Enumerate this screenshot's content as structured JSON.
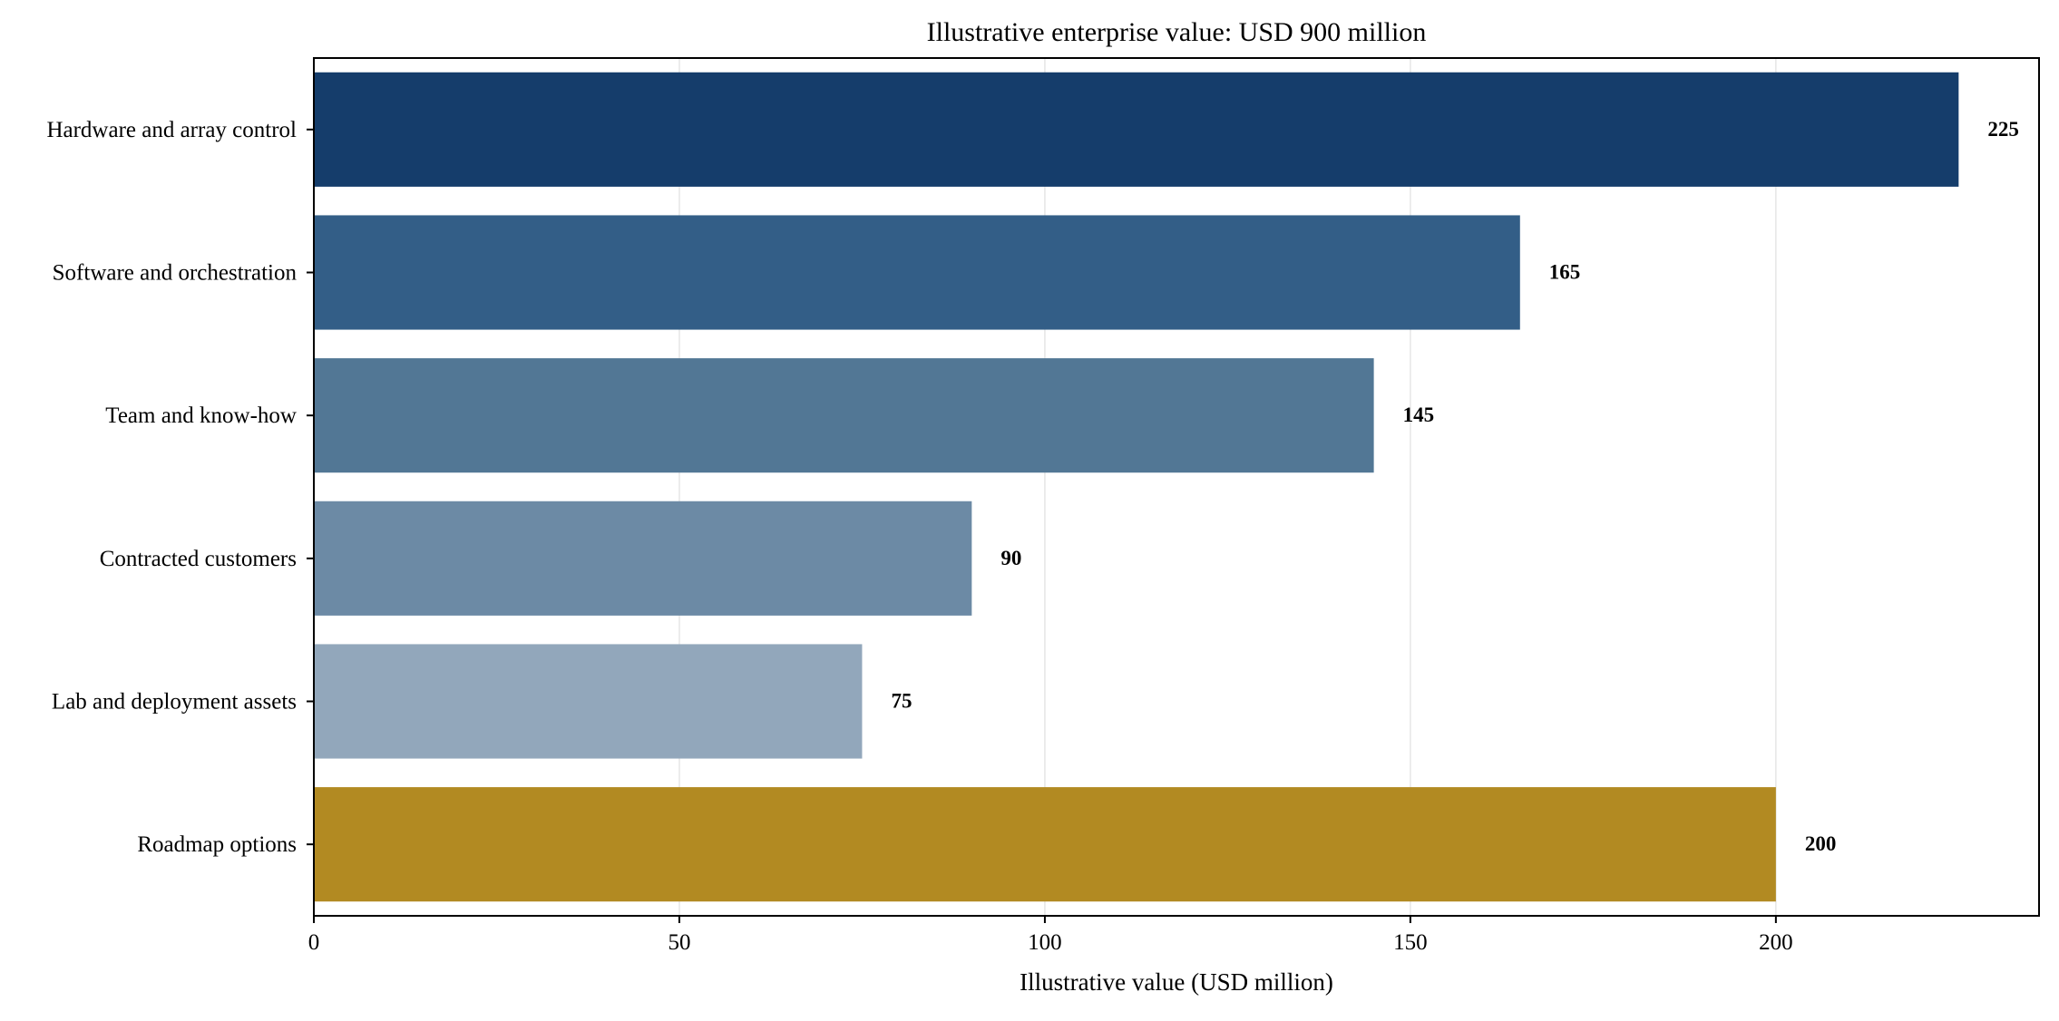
{
  "chart_data": {
    "type": "bar",
    "orientation": "horizontal",
    "title": "Illustrative enterprise value: USD 900 million",
    "xlabel": "Illustrative value (USD million)",
    "ylabel": "",
    "xlim": [
      0,
      236
    ],
    "xticks": [
      0,
      50,
      100,
      150,
      200
    ],
    "grid": "vertical",
    "categories": [
      "Hardware and array control",
      "Software and orchestration",
      "Team and know-how",
      "Contracted customers",
      "Lab and deployment assets",
      "Roadmap options"
    ],
    "values": [
      225,
      165,
      145,
      90,
      75,
      200
    ],
    "data_labels": [
      "225",
      "165",
      "145",
      "90",
      "75",
      "200"
    ],
    "colors": [
      "#153d6b",
      "#335e87",
      "#527795",
      "#6c8aa5",
      "#92a7bb",
      "#b28a22"
    ]
  }
}
